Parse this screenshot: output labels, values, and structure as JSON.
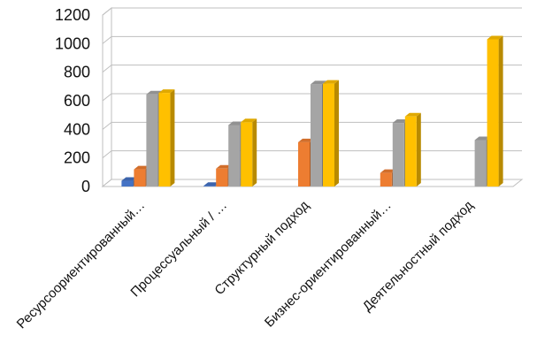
{
  "chart_data": {
    "type": "bar",
    "title": "",
    "xlabel": "",
    "ylabel": "",
    "ylim": [
      0,
      1200
    ],
    "yticks": [
      0,
      200,
      400,
      600,
      800,
      1000,
      1200
    ],
    "grid": true,
    "categories": [
      "Ресурсоориентированный…",
      "Процессуальный / …",
      "Структурный подход",
      "Бизнес-ориентированный…",
      "Деятельностный подход"
    ],
    "series": [
      {
        "color": "#4472C4",
        "values": [
          40,
          5,
          0,
          0,
          0
        ]
      },
      {
        "color": "#ED7D31",
        "values": [
          120,
          125,
          310,
          95,
          0
        ]
      },
      {
        "color": "#A5A5A5",
        "values": [
          645,
          430,
          715,
          445,
          325
        ]
      },
      {
        "color": "#FFC000",
        "values": [
          655,
          450,
          720,
          490,
          1030
        ]
      }
    ]
  }
}
